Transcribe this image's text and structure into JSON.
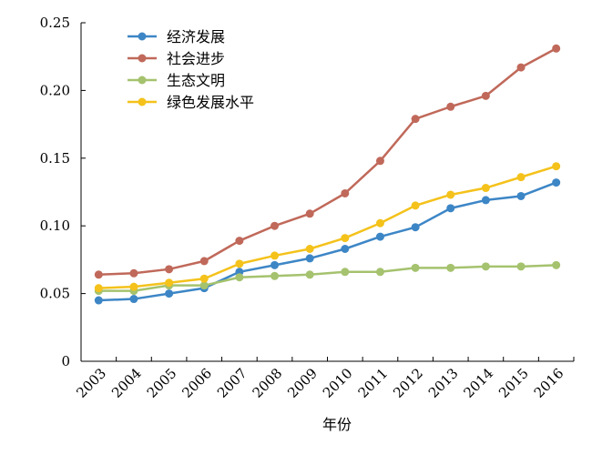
{
  "chart_data": {
    "type": "line",
    "x": [
      "2003",
      "2004",
      "2005",
      "2006",
      "2007",
      "2008",
      "2009",
      "2010",
      "2011",
      "2012",
      "2013",
      "2014",
      "2015",
      "2016"
    ],
    "xlabel": "年份",
    "ylabel": "",
    "ylim": [
      0,
      0.25
    ],
    "yticks": [
      "0",
      "0.05",
      "0.10",
      "0.15",
      "0.20",
      "0.25"
    ],
    "grid": false,
    "legend": "top-left",
    "series": [
      {
        "name": "经济发展",
        "color": "#3d86c6",
        "values": [
          0.045,
          0.046,
          0.05,
          0.054,
          0.066,
          0.071,
          0.076,
          0.083,
          0.092,
          0.099,
          0.113,
          0.119,
          0.122,
          0.132
        ]
      },
      {
        "name": "社会进步",
        "color": "#c0695a",
        "values": [
          0.064,
          0.065,
          0.068,
          0.074,
          0.089,
          0.1,
          0.109,
          0.124,
          0.148,
          0.179,
          0.188,
          0.196,
          0.217,
          0.231
        ]
      },
      {
        "name": "生态文明",
        "color": "#a5c26e",
        "values": [
          0.052,
          0.052,
          0.056,
          0.056,
          0.062,
          0.063,
          0.064,
          0.066,
          0.066,
          0.069,
          0.069,
          0.07,
          0.07,
          0.071
        ]
      },
      {
        "name": "绿色发展水平",
        "color": "#f4c21b",
        "values": [
          0.054,
          0.055,
          0.058,
          0.061,
          0.072,
          0.078,
          0.083,
          0.091,
          0.102,
          0.115,
          0.123,
          0.128,
          0.136,
          0.144
        ]
      }
    ]
  }
}
